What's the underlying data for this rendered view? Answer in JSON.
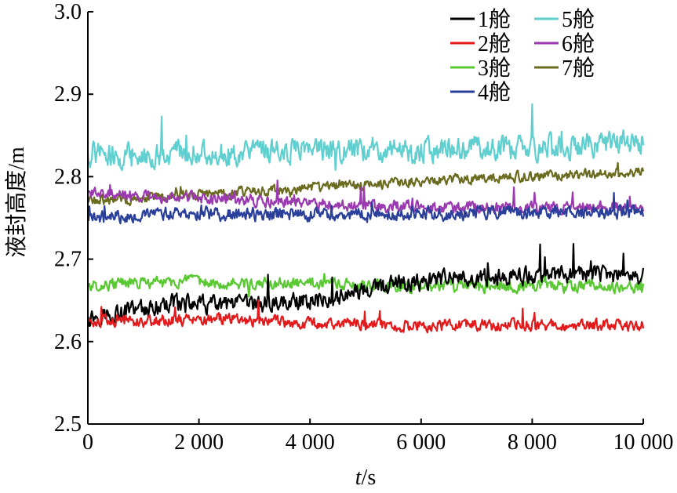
{
  "chart_data": {
    "type": "line",
    "xlabel": {
      "italic": "t",
      "rest": "/s"
    },
    "ylabel": "液封高度/m",
    "xlim": [
      0,
      10000
    ],
    "ylim": [
      2.5,
      3.0
    ],
    "xticks": [
      0,
      2000,
      4000,
      6000,
      8000,
      10000
    ],
    "xtick_labels": [
      "0",
      "2 000",
      "4 000",
      "6 000",
      "8 000",
      "10 000"
    ],
    "yticks": [
      2.5,
      2.6,
      2.7,
      2.8,
      2.9,
      3.0
    ],
    "ytick_labels": [
      "2.5",
      "2.6",
      "2.7",
      "2.8",
      "2.9",
      "3.0"
    ],
    "grid": false,
    "legend_position": "top-right",
    "x": [
      0,
      500,
      1000,
      1500,
      2000,
      2500,
      3000,
      3500,
      4000,
      4500,
      5000,
      5500,
      6000,
      6500,
      7000,
      7500,
      8000,
      8500,
      9000,
      9500,
      10000
    ],
    "series": [
      {
        "name": "1舱",
        "color": "#000000",
        "noise": 0.012,
        "values": [
          2.63,
          2.635,
          2.64,
          2.645,
          2.645,
          2.643,
          2.645,
          2.648,
          2.65,
          2.655,
          2.662,
          2.668,
          2.672,
          2.675,
          2.678,
          2.677,
          2.68,
          2.68,
          2.68,
          2.68,
          2.68
        ]
      },
      {
        "name": "2舱",
        "color": "#e21a1c",
        "noise": 0.008,
        "values": [
          2.625,
          2.625,
          2.625,
          2.626,
          2.627,
          2.628,
          2.626,
          2.624,
          2.623,
          2.622,
          2.622,
          2.62,
          2.62,
          2.62,
          2.62,
          2.619,
          2.62,
          2.62,
          2.62,
          2.619,
          2.619
        ]
      },
      {
        "name": "3舱",
        "color": "#5ac832",
        "noise": 0.008,
        "values": [
          2.668,
          2.67,
          2.671,
          2.672,
          2.672,
          2.671,
          2.67,
          2.67,
          2.67,
          2.669,
          2.668,
          2.668,
          2.667,
          2.667,
          2.667,
          2.667,
          2.667,
          2.668,
          2.667,
          2.667,
          2.667
        ]
      },
      {
        "name": "4舱",
        "color": "#2a3f9a",
        "noise": 0.009,
        "values": [
          2.75,
          2.752,
          2.754,
          2.755,
          2.755,
          2.754,
          2.754,
          2.755,
          2.754,
          2.755,
          2.755,
          2.756,
          2.756,
          2.756,
          2.756,
          2.757,
          2.756,
          2.756,
          2.756,
          2.757,
          2.756
        ]
      },
      {
        "name": "5舱",
        "color": "#5fcfcf",
        "noise": 0.016,
        "values": [
          2.828,
          2.825,
          2.825,
          2.828,
          2.83,
          2.83,
          2.828,
          2.83,
          2.832,
          2.83,
          2.83,
          2.832,
          2.832,
          2.833,
          2.835,
          2.835,
          2.835,
          2.837,
          2.838,
          2.84,
          2.843
        ]
      },
      {
        "name": "6舱",
        "color": "#9b3ab0",
        "noise": 0.008,
        "values": [
          2.78,
          2.778,
          2.776,
          2.775,
          2.774,
          2.773,
          2.771,
          2.77,
          2.768,
          2.766,
          2.765,
          2.764,
          2.763,
          2.762,
          2.762,
          2.762,
          2.762,
          2.762,
          2.762,
          2.763,
          2.762
        ]
      },
      {
        "name": "7舱",
        "color": "#6b6b20",
        "noise": 0.007,
        "values": [
          2.77,
          2.772,
          2.774,
          2.776,
          2.778,
          2.78,
          2.782,
          2.784,
          2.786,
          2.788,
          2.79,
          2.792,
          2.794,
          2.796,
          2.798,
          2.8,
          2.801,
          2.802,
          2.803,
          2.804,
          2.806
        ]
      }
    ]
  }
}
